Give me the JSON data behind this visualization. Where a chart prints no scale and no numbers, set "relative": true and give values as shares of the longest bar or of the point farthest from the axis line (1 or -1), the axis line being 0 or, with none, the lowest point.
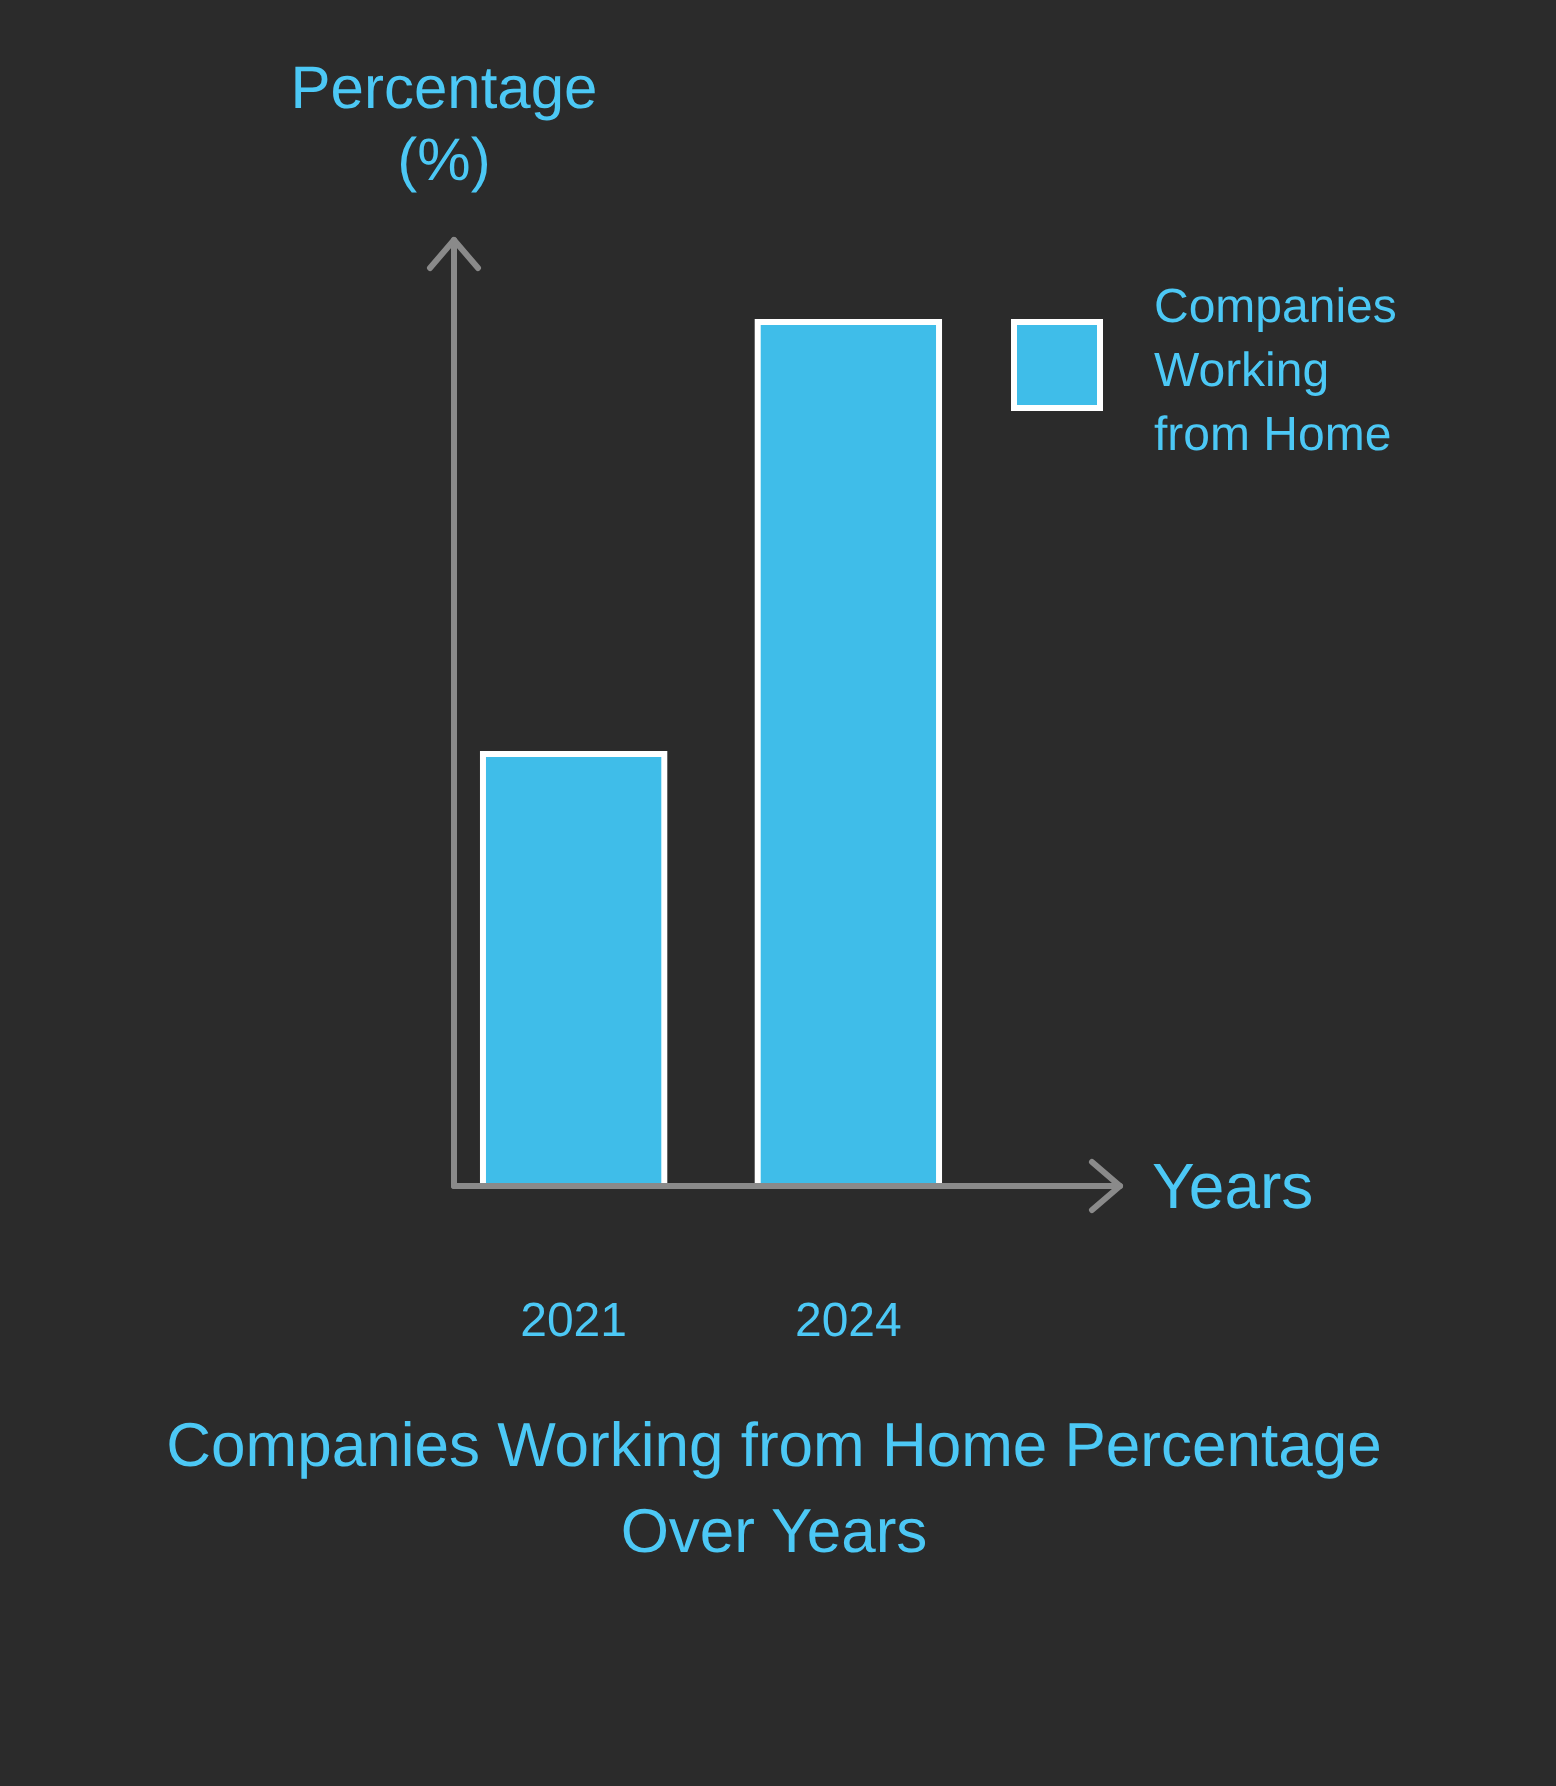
{
  "chart_data": {
    "type": "bar",
    "title": "Companies Working from Home Percentage Over Years",
    "xlabel": "Years",
    "ylabel": "Percentage (%)",
    "categories": [
      "2021",
      "2024"
    ],
    "relative": true,
    "series": [
      {
        "name": "Companies Working from Home",
        "color": "#3fbde9",
        "values": [
          0.5,
          1
        ]
      }
    ],
    "legend": "top right"
  }
}
